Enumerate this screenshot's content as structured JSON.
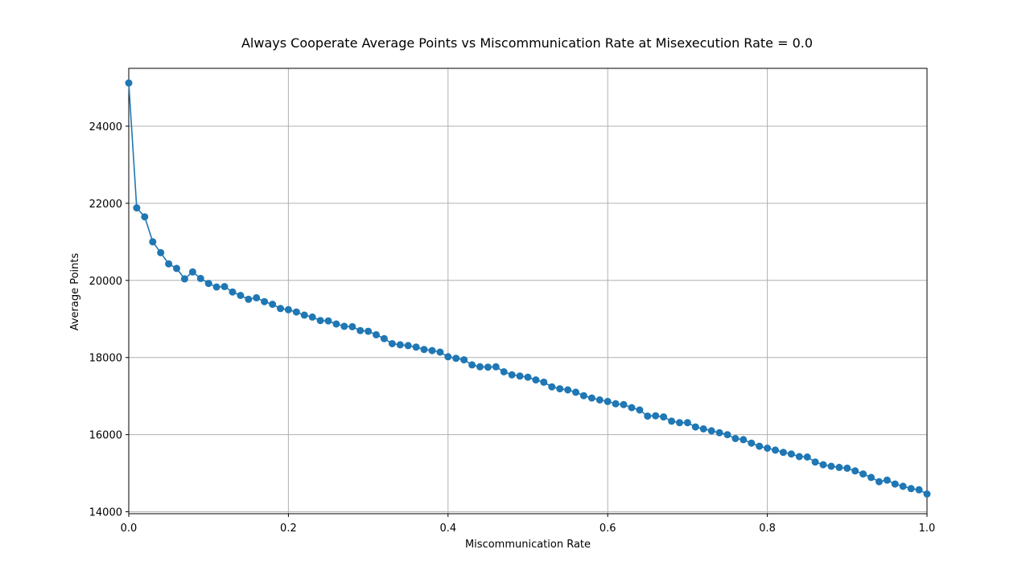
{
  "chart_data": {
    "type": "line",
    "title": "Always Cooperate Average Points vs Miscommunication Rate at Misexecution Rate = 0.0",
    "xlabel": "Miscommunication Rate",
    "ylabel": "Average Points",
    "xlim": [
      0.0,
      1.0
    ],
    "ylim": [
      13950,
      25500
    ],
    "xticks": [
      0.0,
      0.2,
      0.4,
      0.6,
      0.8,
      1.0
    ],
    "xtick_labels": [
      "0.0",
      "0.2",
      "0.4",
      "0.6",
      "0.8",
      "1.0"
    ],
    "yticks": [
      14000,
      16000,
      18000,
      20000,
      22000,
      24000
    ],
    "ytick_labels": [
      "14000",
      "16000",
      "18000",
      "20000",
      "22000",
      "24000"
    ],
    "grid": true,
    "line_color": "#1f77b4",
    "marker": "circle",
    "series": [
      {
        "x": [
          0.0,
          0.01,
          0.02,
          0.03,
          0.04,
          0.05,
          0.06,
          0.07,
          0.08,
          0.09,
          0.1,
          0.11,
          0.12,
          0.13,
          0.14,
          0.15,
          0.16,
          0.17,
          0.18,
          0.19,
          0.2,
          0.21,
          0.22,
          0.23,
          0.24,
          0.25,
          0.26,
          0.27,
          0.28,
          0.29,
          0.3,
          0.31,
          0.32,
          0.33,
          0.34,
          0.35,
          0.36,
          0.37,
          0.38,
          0.39,
          0.4,
          0.41,
          0.42,
          0.43,
          0.44,
          0.45,
          0.46,
          0.47,
          0.48,
          0.49,
          0.5,
          0.51,
          0.52,
          0.53,
          0.54,
          0.55,
          0.56,
          0.57,
          0.58,
          0.59,
          0.6,
          0.61,
          0.62,
          0.63,
          0.64,
          0.65,
          0.66,
          0.67,
          0.68,
          0.69,
          0.7,
          0.71,
          0.72,
          0.73,
          0.74,
          0.75,
          0.76,
          0.77,
          0.78,
          0.79,
          0.8,
          0.81,
          0.82,
          0.83,
          0.84,
          0.85,
          0.86,
          0.87,
          0.88,
          0.89,
          0.9,
          0.91,
          0.92,
          0.93,
          0.94,
          0.95,
          0.96,
          0.97,
          0.98,
          0.99,
          1.0
        ],
        "y": [
          25120,
          21880,
          21650,
          21000,
          20720,
          20430,
          20310,
          20040,
          20220,
          20050,
          19920,
          19830,
          19840,
          19700,
          19610,
          19510,
          19550,
          19450,
          19380,
          19270,
          19240,
          19180,
          19100,
          19050,
          18960,
          18950,
          18870,
          18810,
          18800,
          18700,
          18680,
          18590,
          18490,
          18360,
          18330,
          18310,
          18270,
          18210,
          18180,
          18140,
          18020,
          17980,
          17940,
          17810,
          17760,
          17750,
          17760,
          17630,
          17550,
          17520,
          17490,
          17420,
          17360,
          17240,
          17190,
          17160,
          17100,
          17010,
          16950,
          16900,
          16860,
          16800,
          16780,
          16700,
          16640,
          16480,
          16490,
          16460,
          16350,
          16310,
          16310,
          16200,
          16150,
          16100,
          16050,
          16000,
          15900,
          15870,
          15780,
          15700,
          15650,
          15600,
          15540,
          15500,
          15430,
          15420,
          15290,
          15220,
          15180,
          15150,
          15130,
          15060,
          14980,
          14890,
          14780,
          14820,
          14720,
          14660,
          14600,
          14570,
          14460
        ]
      }
    ]
  }
}
